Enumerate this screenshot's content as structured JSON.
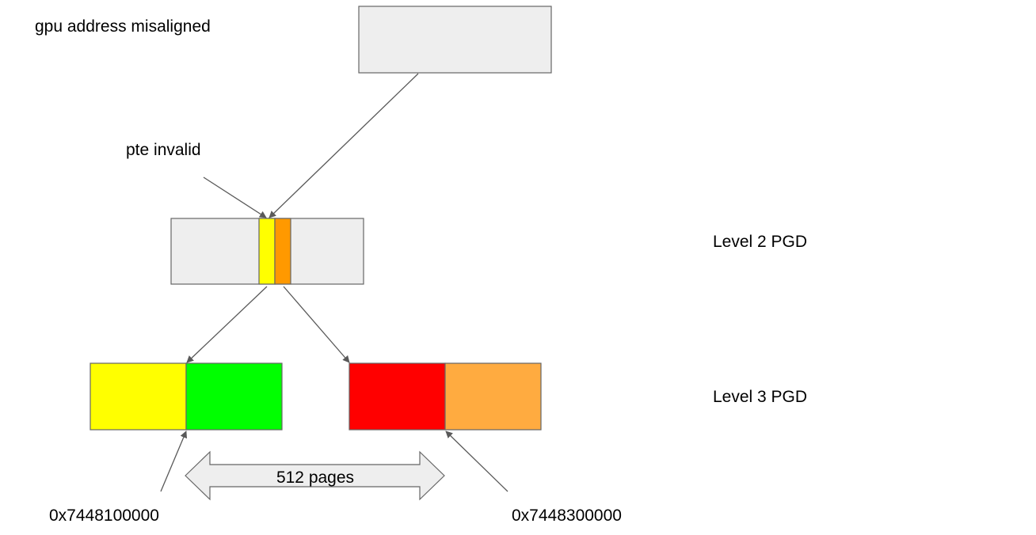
{
  "labels": {
    "gpu_address": "gpu address misaligned",
    "pte_invalid": "pte invalid",
    "level2": "Level 2 PGD",
    "level3": "Level 3 PGD",
    "span": "512 pages",
    "addr_left": "0x7448100000",
    "addr_right": "0x7448300000"
  },
  "colors": {
    "box_fill": "#eeeeee",
    "yellow": "#ffff00",
    "orange": "#ff9900",
    "green": "#00ff00",
    "red": "#ff0000",
    "light_orange": "#ffab40",
    "arrow_fill": "#eeeeee"
  }
}
